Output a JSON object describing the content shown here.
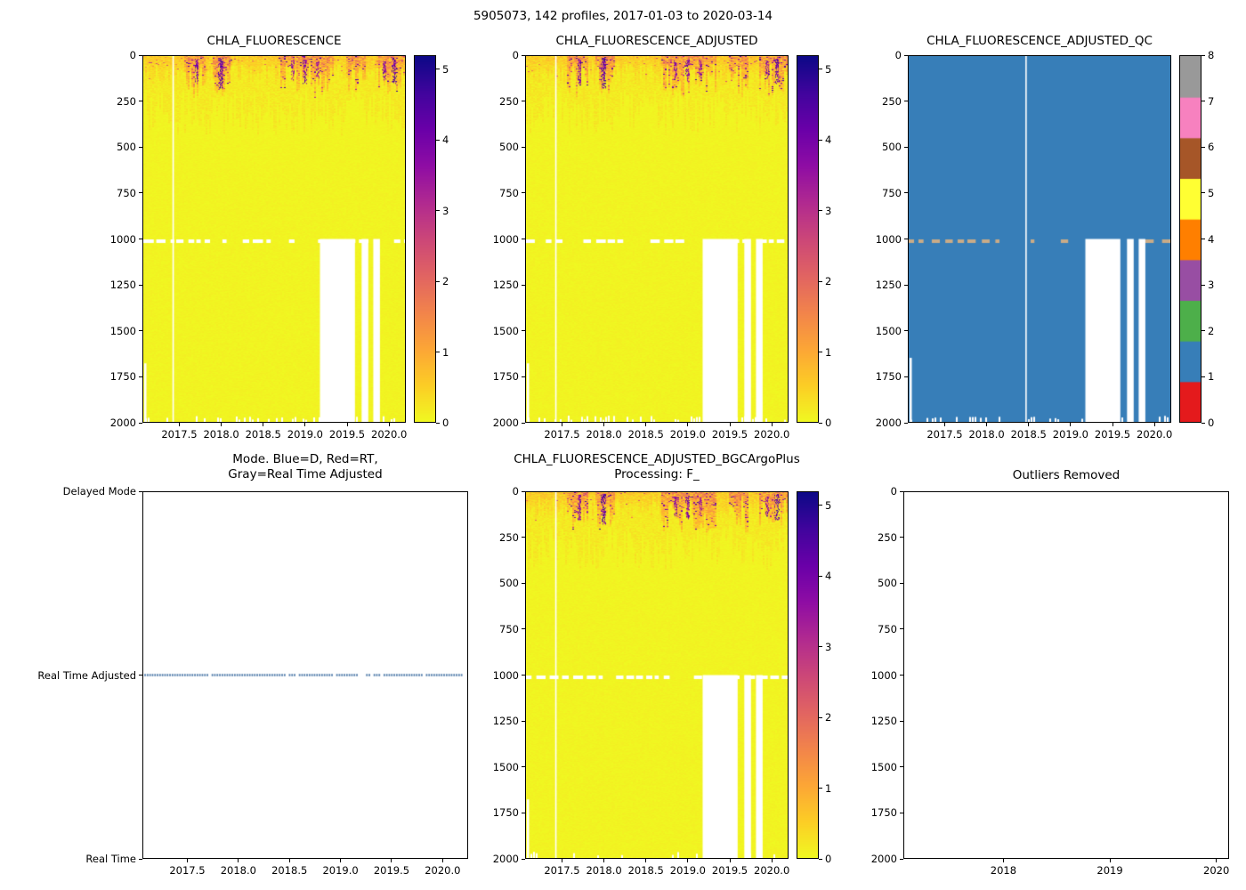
{
  "suptitle": "5905073, 142 profiles, 2017-01-03 to 2020-03-14",
  "colormaps": {
    "plasma_stops": [
      "#0d0887",
      "#41049d",
      "#6a00a8",
      "#8f0da4",
      "#b12a90",
      "#cc4778",
      "#e16462",
      "#f2844b",
      "#fca636",
      "#fcce25",
      "#f0f921"
    ],
    "qc_palette": [
      "#e41a1c",
      "#377eb8",
      "#4daf4a",
      "#984ea3",
      "#ff7f00",
      "#ffff33",
      "#a65628",
      "#f781bf",
      "#999999"
    ]
  },
  "chart_data": [
    {
      "type": "heatmap",
      "title": "CHLA_FLUORESCENCE",
      "x_range": [
        2017.06,
        2020.2
      ],
      "x_tick_values": [
        2017.5,
        2018.0,
        2018.5,
        2019.0,
        2019.5,
        2020.0
      ],
      "x_tick_labels": [
        "2017.5",
        "2018.0",
        "2018.5",
        "2019.0",
        "2019.5",
        "2020.0"
      ],
      "y_range": [
        0,
        2000
      ],
      "y_ticks": [
        0,
        250,
        500,
        750,
        1000,
        1250,
        1500,
        1750,
        2000
      ],
      "vmin": 0,
      "vmax": 5.2,
      "colorbar_ticks": [
        0,
        1,
        2,
        3,
        4,
        5
      ],
      "surface_bloom": {
        "bright_depth_m": [
          40,
          190
        ],
        "faint_depth_m": [
          180,
          430
        ],
        "strong_periods": [
          [
            2017.55,
            2017.8
          ],
          [
            2017.9,
            2018.12
          ],
          [
            2018.68,
            2019.35
          ],
          [
            2019.5,
            2019.74
          ],
          [
            2019.85,
            2020.2
          ]
        ],
        "peak_blobs": [
          {
            "x": 2017.7,
            "w_years": 0.04,
            "top_m": 15,
            "bottom_m": 150,
            "value": 4.6
          },
          {
            "x": 2017.99,
            "w_years": 0.06,
            "top_m": 10,
            "bottom_m": 175,
            "value": 5.0
          },
          {
            "x": 2018.85,
            "w_years": 0.035,
            "top_m": 25,
            "bottom_m": 130,
            "value": 4.2
          },
          {
            "x": 2019.0,
            "w_years": 0.05,
            "top_m": 20,
            "bottom_m": 150,
            "value": 4.6
          },
          {
            "x": 2019.15,
            "w_years": 0.03,
            "top_m": 30,
            "bottom_m": 120,
            "value": 4.0
          },
          {
            "x": 2019.95,
            "w_years": 0.04,
            "top_m": 25,
            "bottom_m": 130,
            "value": 4.4
          },
          {
            "x": 2020.07,
            "w_years": 0.05,
            "top_m": 15,
            "bottom_m": 150,
            "value": 5.0
          }
        ]
      },
      "missing_data": {
        "row_depth_m": 1010,
        "gaps_top_depth_m": 1000,
        "vertical_gaps_years": [
          [
            2019.18,
            2019.6
          ],
          [
            2019.68,
            2019.76
          ],
          [
            2019.82,
            2019.9
          ]
        ],
        "full_height_line_x": 2017.41,
        "left_edge_gap_from_depth_m": 1680,
        "bottom_notches": true
      },
      "seed": 7
    },
    {
      "type": "heatmap",
      "title": "CHLA_FLUORESCENCE_ADJUSTED",
      "x_range": [
        2017.06,
        2020.2
      ],
      "x_tick_values": [
        2017.5,
        2018.0,
        2018.5,
        2019.0,
        2019.5,
        2020.0
      ],
      "x_tick_labels": [
        "2017.5",
        "2018.0",
        "2018.5",
        "2019.0",
        "2019.5",
        "2020.0"
      ],
      "y_range": [
        0,
        2000
      ],
      "y_ticks": [
        0,
        250,
        500,
        750,
        1000,
        1250,
        1500,
        1750,
        2000
      ],
      "vmin": 0,
      "vmax": 5.2,
      "colorbar_ticks": [
        0,
        1,
        2,
        3,
        4,
        5
      ],
      "surface_bloom": {
        "bright_depth_m": [
          40,
          190
        ],
        "faint_depth_m": [
          180,
          430
        ],
        "strong_periods": [
          [
            2017.55,
            2017.8
          ],
          [
            2017.9,
            2018.12
          ],
          [
            2018.68,
            2019.35
          ],
          [
            2019.5,
            2019.74
          ],
          [
            2019.85,
            2020.2
          ]
        ],
        "peak_blobs": [
          {
            "x": 2017.7,
            "w_years": 0.04,
            "top_m": 15,
            "bottom_m": 150,
            "value": 4.6
          },
          {
            "x": 2017.99,
            "w_years": 0.06,
            "top_m": 10,
            "bottom_m": 175,
            "value": 5.0
          },
          {
            "x": 2018.85,
            "w_years": 0.035,
            "top_m": 25,
            "bottom_m": 130,
            "value": 4.2
          },
          {
            "x": 2019.0,
            "w_years": 0.05,
            "top_m": 20,
            "bottom_m": 150,
            "value": 4.6
          },
          {
            "x": 2019.15,
            "w_years": 0.03,
            "top_m": 30,
            "bottom_m": 120,
            "value": 4.0
          },
          {
            "x": 2019.95,
            "w_years": 0.04,
            "top_m": 25,
            "bottom_m": 130,
            "value": 4.4
          },
          {
            "x": 2020.07,
            "w_years": 0.05,
            "top_m": 15,
            "bottom_m": 150,
            "value": 5.0
          }
        ]
      },
      "missing_data": {
        "row_depth_m": 1010,
        "gaps_top_depth_m": 1000,
        "vertical_gaps_years": [
          [
            2019.18,
            2019.6
          ],
          [
            2019.68,
            2019.76
          ],
          [
            2019.82,
            2019.9
          ]
        ],
        "full_height_line_x": 2017.41,
        "left_edge_gap_from_depth_m": 1680,
        "bottom_notches": true
      },
      "seed": 101
    },
    {
      "type": "qc_heatmap",
      "title": "CHLA_FLUORESCENCE_ADJUSTED_QC",
      "x_range": [
        2017.06,
        2020.2
      ],
      "x_tick_values": [
        2017.5,
        2018.0,
        2018.5,
        2019.0,
        2019.5,
        2020.0
      ],
      "x_tick_labels": [
        "2017.5",
        "2018.0",
        "2018.5",
        "2019.0",
        "2019.5",
        "2020.0"
      ],
      "y_range": [
        0,
        2000
      ],
      "y_ticks": [
        0,
        250,
        500,
        750,
        1000,
        1250,
        1500,
        1750,
        2000
      ],
      "vmin": 0,
      "vmax": 8,
      "colorbar_ticks": [
        0,
        1,
        2,
        3,
        4,
        5,
        6,
        7,
        8
      ],
      "fill_qc_value": 1,
      "row_depth_m": 1010,
      "row_dash_color": "#c9ab87",
      "gaps_top_depth_m": 1000,
      "vertical_gaps_years": [
        [
          2019.18,
          2019.6
        ],
        [
          2019.68,
          2019.76
        ],
        [
          2019.82,
          2019.9
        ]
      ],
      "full_height_line_x": 2018.46,
      "left_edge_gap_from_depth_m": 1650,
      "bottom_notches": true,
      "seed": 21
    },
    {
      "type": "category_scatter",
      "title": "Mode. Blue=D, Red=RT,\nGray=Real Time Adjusted",
      "x_range": [
        2017.06,
        2020.25
      ],
      "x_tick_values": [
        2017.5,
        2018.0,
        2018.5,
        2019.0,
        2019.5,
        2020.0
      ],
      "x_tick_labels": [
        "2017.5",
        "2018.0",
        "2018.5",
        "2019.0",
        "2019.5",
        "2020.0"
      ],
      "y_categories": [
        "Delayed Mode",
        "Real Time Adjusted",
        "Real Time"
      ],
      "points_category": "Real Time Adjusted",
      "points_x_span": [
        2017.07,
        2020.2
      ],
      "marker_color": "#4f7aa9",
      "seed": 3
    },
    {
      "type": "heatmap",
      "title": "CHLA_FLUORESCENCE_ADJUSTED_BGCArgoPlus\nProcessing: F_",
      "x_range": [
        2017.06,
        2020.2
      ],
      "x_tick_values": [
        2017.5,
        2018.0,
        2018.5,
        2019.0,
        2019.5,
        2020.0
      ],
      "x_tick_labels": [
        "2017.5",
        "2018.0",
        "2018.5",
        "2019.0",
        "2019.5",
        "2020.0"
      ],
      "y_range": [
        0,
        2000
      ],
      "y_ticks": [
        0,
        250,
        500,
        750,
        1000,
        1250,
        1500,
        1750,
        2000
      ],
      "vmin": 0,
      "vmax": 5.2,
      "colorbar_ticks": [
        0,
        1,
        2,
        3,
        4,
        5
      ],
      "surface_bloom": {
        "bright_depth_m": [
          40,
          190
        ],
        "faint_depth_m": [
          180,
          430
        ],
        "strong_periods": [
          [
            2017.55,
            2017.8
          ],
          [
            2017.9,
            2018.12
          ],
          [
            2018.68,
            2019.35
          ],
          [
            2019.5,
            2019.74
          ],
          [
            2019.85,
            2020.2
          ]
        ],
        "peak_blobs": [
          {
            "x": 2017.7,
            "w_years": 0.04,
            "top_m": 15,
            "bottom_m": 150,
            "value": 4.6
          },
          {
            "x": 2017.99,
            "w_years": 0.06,
            "top_m": 10,
            "bottom_m": 175,
            "value": 5.0
          },
          {
            "x": 2018.85,
            "w_years": 0.035,
            "top_m": 25,
            "bottom_m": 130,
            "value": 4.2
          },
          {
            "x": 2019.0,
            "w_years": 0.05,
            "top_m": 20,
            "bottom_m": 150,
            "value": 4.6
          },
          {
            "x": 2019.15,
            "w_years": 0.03,
            "top_m": 30,
            "bottom_m": 120,
            "value": 4.0
          },
          {
            "x": 2019.95,
            "w_years": 0.04,
            "top_m": 25,
            "bottom_m": 130,
            "value": 4.4
          },
          {
            "x": 2020.07,
            "w_years": 0.05,
            "top_m": 15,
            "bottom_m": 150,
            "value": 5.0
          }
        ]
      },
      "missing_data": {
        "row_depth_m": 1010,
        "gaps_top_depth_m": 1000,
        "vertical_gaps_years": [
          [
            2019.18,
            2019.6
          ],
          [
            2019.68,
            2019.76
          ],
          [
            2019.82,
            2019.9
          ]
        ],
        "full_height_line_x": 2017.41,
        "left_edge_gap_from_depth_m": 1680,
        "bottom_notches": true
      },
      "seed": 555
    },
    {
      "type": "empty",
      "title": "Outliers Removed",
      "x_range": [
        2017.06,
        2020.12
      ],
      "x_tick_values": [
        2018,
        2019,
        2020
      ],
      "x_tick_labels": [
        "2018",
        "2019",
        "2020"
      ],
      "y_range": [
        0,
        2000
      ],
      "y_ticks": [
        0,
        250,
        500,
        750,
        1000,
        1250,
        1500,
        1750,
        2000
      ]
    }
  ]
}
